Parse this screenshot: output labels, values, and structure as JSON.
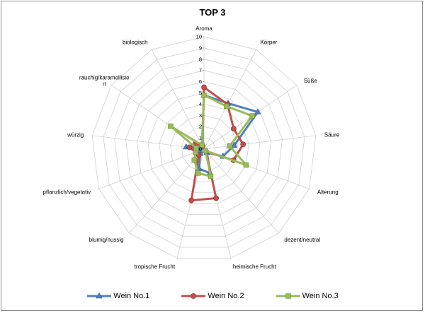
{
  "chart_data": {
    "type": "radar",
    "title": "TOP 3",
    "categories": [
      "Aroma",
      "Körper",
      "Süße",
      "Säure",
      "Alterung",
      "dezent/neutral",
      "heimische Frucht",
      "tropische Frucht",
      "blumig/nussig",
      "pflanzlich/vegetativ",
      "würzig",
      "rauchig/karamellisiert",
      "biologisch"
    ],
    "category_labels_display": [
      [
        "Aroma"
      ],
      [
        "Körper"
      ],
      [
        "Süße"
      ],
      [
        "Säure"
      ],
      [
        "Alterung"
      ],
      [
        "dezent/neutral"
      ],
      [
        "heimische Frucht"
      ],
      [
        "tropische Frucht"
      ],
      [
        "blumig/nussig"
      ],
      [
        "pflanzlich/vegetativ"
      ],
      [
        "würzig"
      ],
      [
        "rauchig/karamellisie",
        "rt"
      ],
      [
        "biologisch"
      ]
    ],
    "ticks": [
      "0",
      "1",
      "2",
      "3",
      "4",
      "5",
      "6",
      "7",
      "8",
      "9",
      "10"
    ],
    "rlim": [
      0,
      10
    ],
    "grid": true,
    "legend_position": "bottom",
    "series": [
      {
        "name": "Wein No.1",
        "color": "#4f81bd",
        "marker": "triangle",
        "values": [
          4.8,
          4.6,
          5.8,
          2.7,
          1.8,
          0.4,
          2.2,
          1.8,
          0.5,
          0.4,
          1.6,
          0.2,
          0.4
        ]
      },
      {
        "name": "Wein No.2",
        "color": "#c0504d",
        "marker": "circle",
        "values": [
          5.5,
          4.5,
          3.2,
          3.5,
          2.8,
          0.3,
          4.5,
          4.7,
          0.7,
          0.8,
          1.3,
          0.9,
          0.3
        ]
      },
      {
        "name": "Wein No.3",
        "color": "#9bbb59",
        "marker": "square",
        "values": [
          4.8,
          4.3,
          5.2,
          2.3,
          4.0,
          0.2,
          2.5,
          2.2,
          1.3,
          0.8,
          0.7,
          3.6,
          0.4
        ]
      }
    ]
  }
}
